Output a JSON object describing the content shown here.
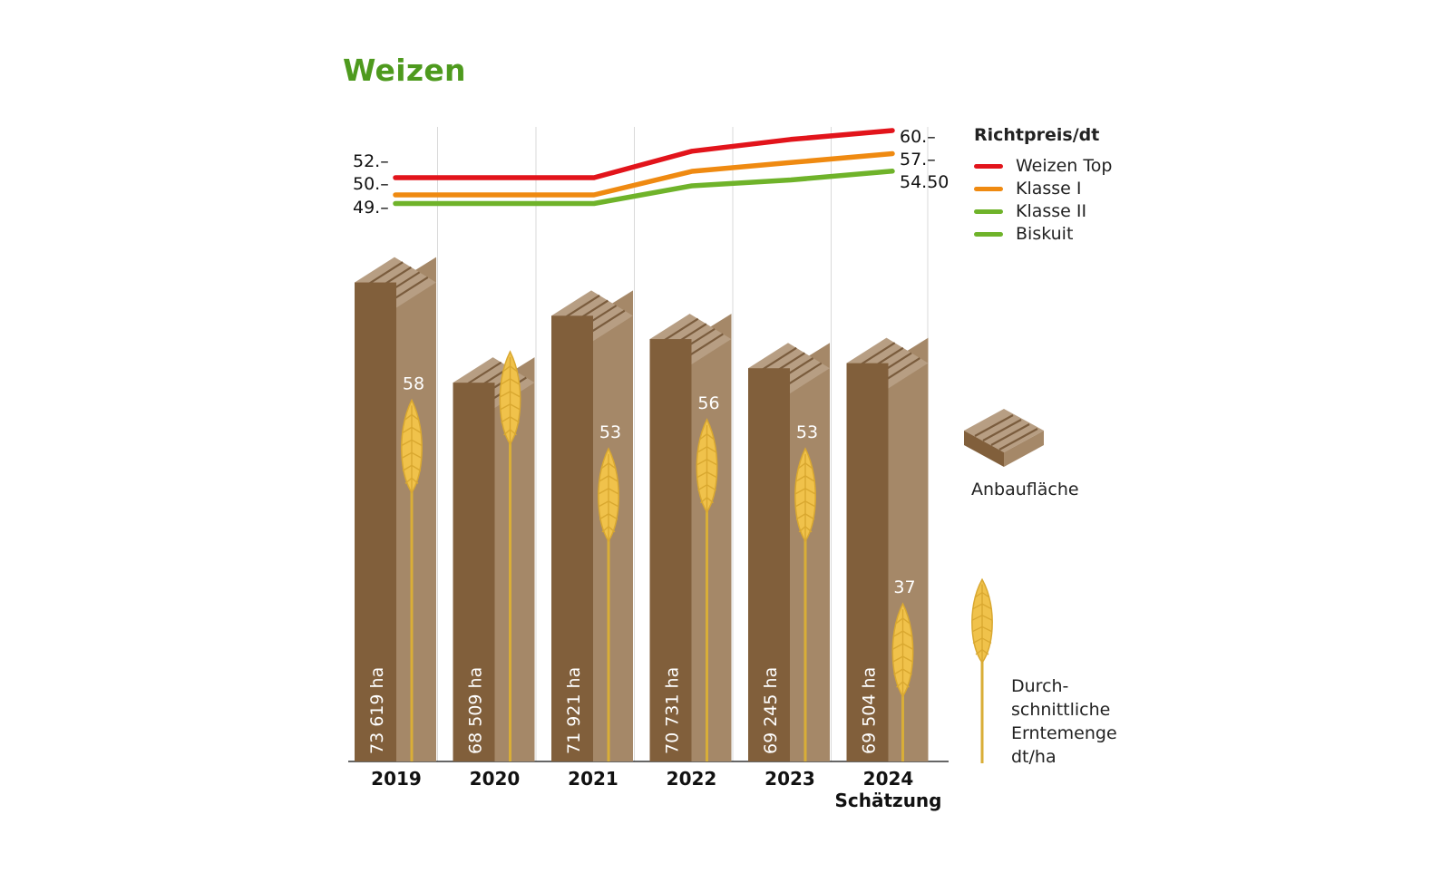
{
  "title": "Weizen",
  "legend": {
    "title": "Richtpreis/dt",
    "items": [
      {
        "label": "Weizen Top",
        "color": "#e2141b"
      },
      {
        "label": "Klasse I",
        "color": "#ef8a11"
      },
      {
        "label": "Klasse II",
        "color": "#6fb32a"
      },
      {
        "label": "Biskuit",
        "color": "#6fb32a"
      }
    ]
  },
  "side_labels": {
    "area": "Anbaufläche",
    "yield_lines": [
      "Durch-",
      "schnittliche",
      "Erntemenge",
      "dt/ha"
    ]
  },
  "price_labels": {
    "left": [
      "52.–",
      "50.–",
      "49.–"
    ],
    "right": [
      "60.–",
      "57.–",
      "54.50"
    ]
  },
  "chart_data": {
    "type": "bar",
    "categories": [
      "2019",
      "2020",
      "2021",
      "2022",
      "2023",
      "2024"
    ],
    "category_sublabels": [
      "",
      "",
      "",
      "",
      "",
      "Schätzung"
    ],
    "area_ha": [
      73619,
      68509,
      71921,
      70731,
      69245,
      69504
    ],
    "area_labels": [
      "73 619 ha",
      "68 509 ha",
      "71 921 ha",
      "70 731 ha",
      "69 245 ha",
      "69 504 ha"
    ],
    "yield_dt_ha": [
      58,
      63,
      53,
      56,
      53,
      37
    ],
    "price_series": [
      {
        "name": "Weizen Top",
        "color": "#e2141b",
        "values": [
          52,
          52,
          52,
          56.5,
          58.5,
          60
        ]
      },
      {
        "name": "Klasse I",
        "color": "#ef8a11",
        "values": [
          50,
          50,
          50,
          54,
          55.5,
          57
        ]
      },
      {
        "name": "Klasse II / Biskuit",
        "color": "#6fb32a",
        "values": [
          49,
          49,
          49,
          52,
          53,
          54.5
        ]
      }
    ],
    "price_ylim": [
      46,
      62
    ],
    "grid": "vertical",
    "legend_position": "right"
  },
  "colors": {
    "bar_front": "#815f3b",
    "bar_side": "#a58868",
    "bar_top": "#b79e83",
    "grain": "#f0c24b",
    "stalk": "#d9ae37"
  }
}
